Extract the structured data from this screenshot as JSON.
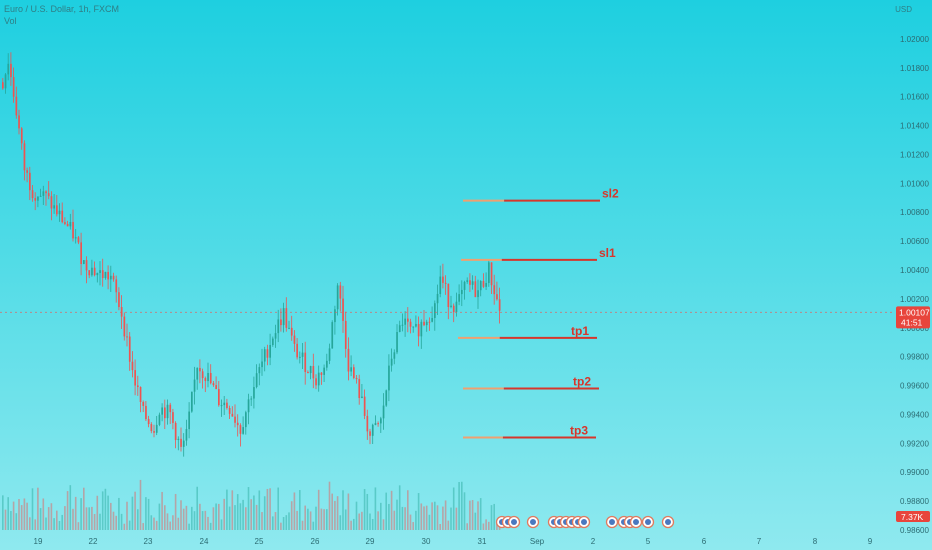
{
  "header": {
    "symbol_line": "Euro / U.S. Dollar, 1h, FXCM",
    "volume_label": "Vol",
    "currency": "USD"
  },
  "price_tag": {
    "price": "1.00107",
    "countdown": "41:51",
    "color": "#e8453c"
  },
  "volume_tag": {
    "value": "7.37K",
    "color": "#e8453c"
  },
  "colors": {
    "up": "#26a69a",
    "down": "#ef5350",
    "level_left": "#f0a070",
    "level_right": "#d7362b",
    "axis_text": "#2c6c73"
  },
  "chart_data": {
    "type": "candlestick",
    "ylim": [
      0.986,
      1.022
    ],
    "y_ticks": [
      "1.02000",
      "1.01800",
      "1.01600",
      "1.01400",
      "1.01200",
      "1.01000",
      "1.00800",
      "1.00600",
      "1.00400",
      "1.00200",
      "1.00000",
      "0.99800",
      "0.99600",
      "0.99400",
      "0.99200",
      "0.99000",
      "0.98800",
      "0.98600"
    ],
    "x_ticks": [
      "19",
      "22",
      "23",
      "24",
      "25",
      "26",
      "29",
      "30",
      "31",
      "Sep",
      "2",
      "5",
      "6",
      "7",
      "8",
      "9"
    ],
    "current_price": 1.00107,
    "levels": [
      {
        "name": "sl2",
        "value": 1.0088
      },
      {
        "name": "sl1",
        "value": 1.0047
      },
      {
        "name": "tp1",
        "value": 0.9993
      },
      {
        "name": "tp2",
        "value": 0.9958
      },
      {
        "name": "tp3",
        "value": 0.9924
      }
    ],
    "close_path": [
      [
        0,
        1.017
      ],
      [
        2,
        1.0185
      ],
      [
        5,
        1.015
      ],
      [
        8,
        1.011
      ],
      [
        11,
        1.0095
      ],
      [
        16,
        1.009
      ],
      [
        20,
        1.008
      ],
      [
        26,
        1.0065
      ],
      [
        30,
        1.0045
      ],
      [
        35,
        1.0038
      ],
      [
        40,
        1.0035
      ],
      [
        44,
        1.001
      ],
      [
        48,
        0.997
      ],
      [
        52,
        0.994
      ],
      [
        56,
        0.993
      ],
      [
        58,
        0.9945
      ],
      [
        62,
        0.994
      ],
      [
        66,
        0.9915
      ],
      [
        68,
        0.9925
      ],
      [
        72,
        0.9975
      ],
      [
        76,
        0.9965
      ],
      [
        80,
        0.995
      ],
      [
        84,
        0.9945
      ],
      [
        88,
        0.993
      ],
      [
        92,
        0.9955
      ],
      [
        96,
        0.9975
      ],
      [
        100,
        0.9995
      ],
      [
        104,
        1.001
      ],
      [
        108,
        0.9985
      ],
      [
        112,
        0.9975
      ],
      [
        116,
        0.9965
      ],
      [
        120,
        0.9975
      ],
      [
        124,
        1.003
      ],
      [
        126,
        1.0005
      ],
      [
        128,
        0.9975
      ],
      [
        132,
        0.9955
      ],
      [
        136,
        0.9925
      ],
      [
        140,
        0.9935
      ],
      [
        144,
        0.998
      ],
      [
        148,
        1.0005
      ],
      [
        152,
        0.9995
      ],
      [
        156,
        1.0005
      ],
      [
        160,
        1.0015
      ],
      [
        162,
        1.0035
      ],
      [
        165,
        1.002
      ],
      [
        168,
        1.0015
      ],
      [
        172,
        1.003
      ],
      [
        176,
        1.0025
      ],
      [
        180,
        1.004
      ],
      [
        184,
        1.0012
      ]
    ]
  }
}
